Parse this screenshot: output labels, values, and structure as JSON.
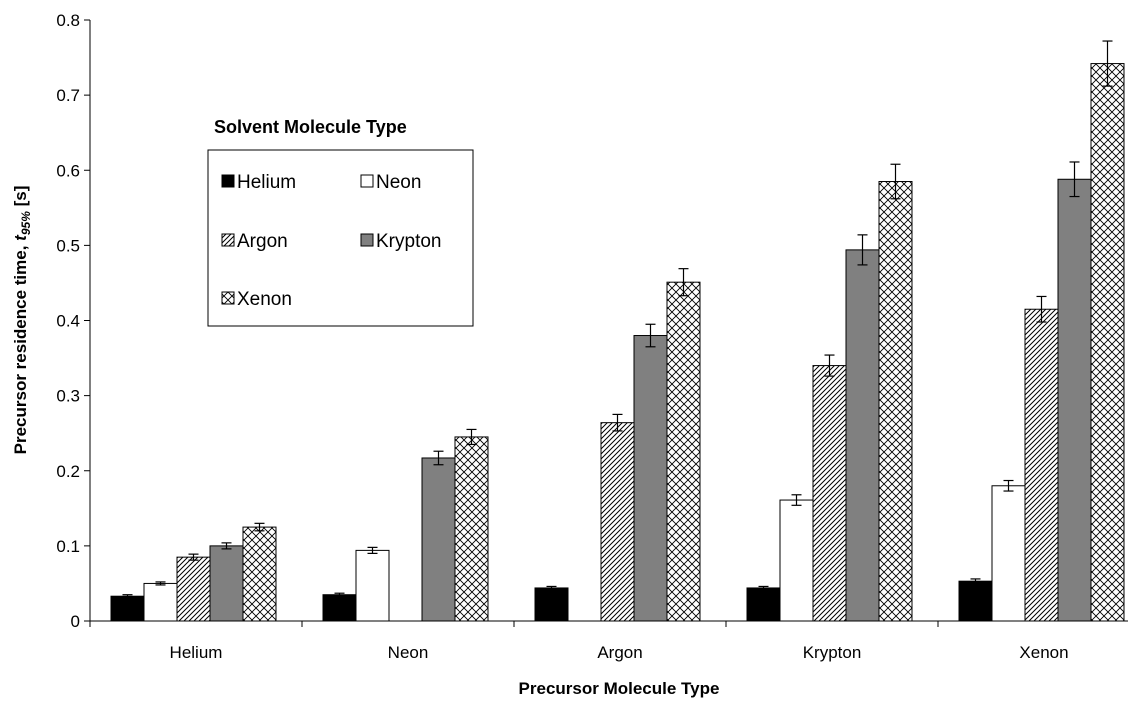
{
  "chart_data": {
    "type": "bar",
    "categories": [
      "Helium",
      "Neon",
      "Argon",
      "Krypton",
      "Xenon"
    ],
    "series": [
      {
        "name": "Helium",
        "fill": "solid-black",
        "values": [
          0.033,
          0.035,
          0.044,
          0.044,
          0.053
        ],
        "errors": [
          0.002,
          0.002,
          0.002,
          0.002,
          0.003
        ]
      },
      {
        "name": "Neon",
        "fill": "white",
        "values": [
          0.05,
          0.094,
          null,
          0.161,
          0.18
        ],
        "errors": [
          0.002,
          0.004,
          null,
          0.007,
          0.007
        ]
      },
      {
        "name": "Argon",
        "fill": "diagonal-hatch",
        "values": [
          0.085,
          null,
          0.264,
          0.34,
          0.415
        ],
        "errors": [
          0.004,
          null,
          0.011,
          0.014,
          0.017
        ]
      },
      {
        "name": "Krypton",
        "fill": "solid-gray",
        "values": [
          0.1,
          0.217,
          0.38,
          0.494,
          0.588
        ],
        "errors": [
          0.004,
          0.009,
          0.015,
          0.02,
          0.023
        ]
      },
      {
        "name": "Xenon",
        "fill": "crosshatch",
        "values": [
          0.125,
          0.245,
          0.451,
          0.585,
          0.742
        ],
        "errors": [
          0.005,
          0.01,
          0.018,
          0.023,
          0.03
        ]
      }
    ],
    "ylim": [
      0,
      0.8
    ],
    "yticks": [
      "0",
      "0.1",
      "0.2",
      "0.3",
      "0.4",
      "0.5",
      "0.6",
      "0.7",
      "0.8"
    ],
    "xlabel": "Precursor Molecule Type",
    "ylabel_main": "Precursor residence time, ",
    "ylabel_var": "t",
    "ylabel_sub": "95%",
    "ylabel_unit": " [s]",
    "legend_title": "Solvent Molecule Type",
    "legend_placement": "upper-left",
    "grid": false,
    "colors": {
      "black": "#000000",
      "gray": "#808080",
      "white": "#ffffff"
    }
  }
}
